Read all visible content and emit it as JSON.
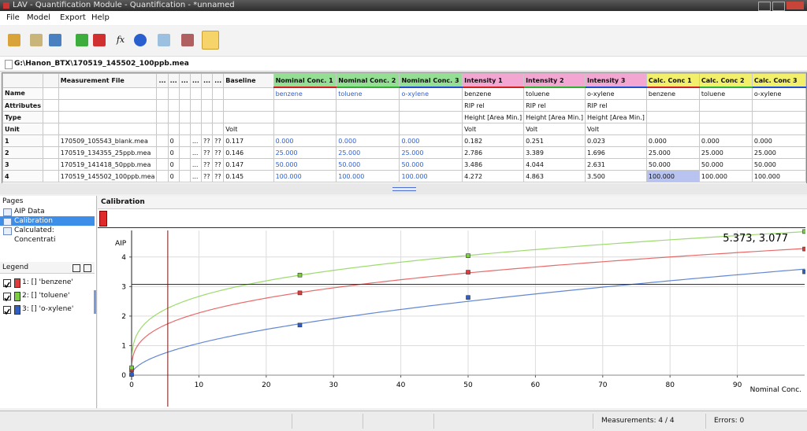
{
  "window": {
    "title": "LAV - Quantification Module - Quantification - *unnamed"
  },
  "menu": [
    "File",
    "Model",
    "Export",
    "Help"
  ],
  "toolbar": {
    "fx": "fx"
  },
  "path": "G:\\Hanon_BTX\\170519_145502_100ppb.mea",
  "table": {
    "columns": [
      null,
      null,
      "Measurement File",
      "...",
      "...",
      "...",
      "...",
      "...",
      "...",
      "Baseline",
      "Nominal Conc. 1",
      "Nominal Conc. 2",
      "Nominal Conc. 3",
      "Intensity 1",
      "Intensity 2",
      "Intensity 3",
      "Calc. Conc 1",
      "Calc. Conc 2",
      "Calc. Conc 3"
    ],
    "rows": [
      [
        "Name",
        null,
        null,
        null,
        null,
        null,
        null,
        null,
        null,
        null,
        "benzene",
        "toluene",
        "o-xylene",
        "benzene",
        "toluene",
        "o-xylene",
        "benzene",
        "toluene",
        "o-xylene"
      ],
      [
        "Attributes",
        null,
        null,
        null,
        null,
        null,
        null,
        null,
        null,
        null,
        null,
        null,
        null,
        "RIP rel",
        "RIP rel",
        "RIP rel",
        null,
        null,
        null
      ],
      [
        "Type",
        null,
        null,
        null,
        null,
        null,
        null,
        null,
        null,
        null,
        null,
        null,
        null,
        "Height [Area Min.]",
        "Height [Area Min.]",
        "Height [Area Min.]",
        null,
        null,
        null
      ],
      [
        "Unit",
        null,
        null,
        null,
        null,
        null,
        null,
        null,
        null,
        "Volt",
        null,
        null,
        null,
        "Volt",
        "Volt",
        "Volt",
        null,
        null,
        null
      ],
      [
        "1",
        null,
        "170509_105543_blank.mea",
        null,
        "0",
        null,
        "...",
        "??",
        "??",
        "0.117",
        "0.000",
        "0.000",
        "0.000",
        "0.182",
        "0.251",
        "0.023",
        "0.000",
        "0.000",
        "0.000"
      ],
      [
        "2",
        null,
        "170519_134355_25ppb.mea",
        null,
        "0",
        null,
        "...",
        "??",
        "??",
        "0.146",
        "25.000",
        "25.000",
        "25.000",
        "2.786",
        "3.389",
        "1.696",
        "25.000",
        "25.000",
        "25.000"
      ],
      [
        "3",
        null,
        "170519_141418_50ppb.mea",
        null,
        "0",
        null,
        "...",
        "??",
        "??",
        "0.147",
        "50.000",
        "50.000",
        "50.000",
        "3.486",
        "4.044",
        "2.631",
        "50.000",
        "50.000",
        "50.000"
      ],
      [
        "4",
        null,
        "170519_145502_100ppb.mea",
        null,
        "0",
        null,
        "...",
        "??",
        "??",
        "0.145",
        "100.000",
        "100.000",
        "100.000",
        "4.272",
        "4.863",
        "3.500",
        "100.000",
        "100.000",
        "100.000"
      ]
    ]
  },
  "pages": {
    "title": "Pages",
    "items": [
      "AIP Data",
      "Calibration",
      "Calculated: Concentrati"
    ]
  },
  "chart_data": {
    "type": "scatter",
    "title": "Calibration",
    "legend_title": "Legend",
    "x_label": "Nominal Conc.",
    "y_label": "AIP",
    "x": [
      0,
      25,
      50,
      100
    ],
    "series": [
      {
        "name": "1: [] 'benzene'",
        "color": "#e03a3a",
        "values": [
          0.182,
          2.786,
          3.486,
          4.272
        ]
      },
      {
        "name": "2: [] 'toluene'",
        "color": "#7ccf3c",
        "values": [
          0.251,
          3.389,
          4.044,
          4.863
        ]
      },
      {
        "name": "3: [] 'o-xylene'",
        "color": "#2f5fc4",
        "values": [
          0.023,
          1.696,
          2.631,
          3.5
        ]
      }
    ],
    "xlim": [
      0,
      100
    ],
    "ylim": [
      0,
      4.9
    ],
    "xticks": [
      0,
      10,
      20,
      30,
      40,
      50,
      60,
      70,
      80,
      90
    ],
    "yticks": [
      0,
      1,
      2,
      3,
      4
    ],
    "grid": true,
    "crosshair": {
      "x": 5.373,
      "y": 3.077,
      "label": "5.373, 3.077"
    }
  },
  "status": {
    "measurements": "Measurements: 4 / 4",
    "errors": "Errors: 0"
  }
}
